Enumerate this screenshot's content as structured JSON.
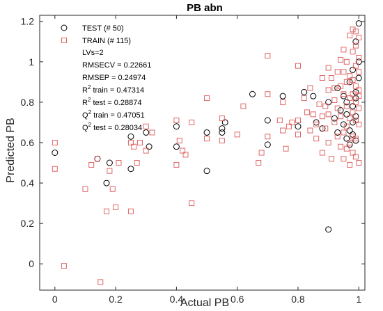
{
  "chart_data": {
    "type": "scatter",
    "title": "PB abn",
    "xlabel": "Actual PB",
    "ylabel": "Predicted PB",
    "xlim": [
      -0.05,
      1.02
    ],
    "ylim": [
      -0.13,
      1.23
    ],
    "xticks": [
      0,
      0.2,
      0.4,
      0.6,
      0.8,
      1
    ],
    "xtick_labels": [
      "0",
      "0.2",
      "0.4",
      "0.6",
      "0.8",
      "1"
    ],
    "yticks": [
      0,
      0.2,
      0.4,
      0.6,
      0.8,
      1,
      1.2
    ],
    "ytick_labels": [
      "0",
      "0.2",
      "0.4",
      "0.6",
      "0.8",
      "1",
      "1.2"
    ],
    "grid": false,
    "legend_position": "top-left",
    "series": [
      {
        "name": "TEST (# 50)",
        "marker": "circle",
        "color": "#000000",
        "points": [
          [
            0.0,
            0.55
          ],
          [
            0.14,
            0.52
          ],
          [
            0.17,
            0.4
          ],
          [
            0.18,
            0.5
          ],
          [
            0.25,
            0.47
          ],
          [
            0.25,
            0.63
          ],
          [
            0.3,
            0.65
          ],
          [
            0.31,
            0.58
          ],
          [
            0.4,
            0.68
          ],
          [
            0.4,
            0.58
          ],
          [
            0.5,
            0.65
          ],
          [
            0.5,
            0.46
          ],
          [
            0.55,
            0.65
          ],
          [
            0.55,
            0.67
          ],
          [
            0.56,
            0.7
          ],
          [
            0.65,
            0.84
          ],
          [
            0.7,
            0.71
          ],
          [
            0.7,
            0.59
          ],
          [
            0.75,
            0.83
          ],
          [
            0.8,
            0.68
          ],
          [
            0.82,
            0.85
          ],
          [
            0.85,
            0.83
          ],
          [
            0.86,
            0.7
          ],
          [
            0.88,
            0.67
          ],
          [
            0.9,
            0.17
          ],
          [
            0.9,
            0.8
          ],
          [
            0.92,
            0.72
          ],
          [
            0.93,
            0.87
          ],
          [
            0.94,
            0.76
          ],
          [
            0.95,
            0.83
          ],
          [
            0.95,
            0.69
          ],
          [
            0.96,
            0.74
          ],
          [
            0.96,
            0.62
          ],
          [
            0.97,
            0.9
          ],
          [
            0.97,
            0.66
          ],
          [
            0.97,
            0.59
          ],
          [
            0.98,
            0.96
          ],
          [
            0.98,
            0.78
          ],
          [
            0.98,
            0.7
          ],
          [
            0.98,
            0.64
          ],
          [
            0.99,
            1.1
          ],
          [
            0.99,
            0.85
          ],
          [
            0.99,
            0.82
          ],
          [
            0.99,
            0.73
          ],
          [
            0.99,
            0.61
          ],
          [
            1.0,
            1.19
          ],
          [
            1.0,
            1.0
          ],
          [
            1.0,
            0.92
          ],
          [
            0.96,
            0.8
          ],
          [
            0.93,
            0.65
          ]
        ]
      },
      {
        "name": "TRAIN (# 115)",
        "marker": "square",
        "color": "#e06666",
        "points": [
          [
            0.0,
            0.6
          ],
          [
            0.0,
            0.47
          ],
          [
            0.03,
            -0.01
          ],
          [
            0.1,
            0.37
          ],
          [
            0.12,
            0.49
          ],
          [
            0.14,
            0.52
          ],
          [
            0.15,
            -0.09
          ],
          [
            0.17,
            0.26
          ],
          [
            0.18,
            0.46
          ],
          [
            0.19,
            0.37
          ],
          [
            0.2,
            0.28
          ],
          [
            0.21,
            0.5
          ],
          [
            0.25,
            0.26
          ],
          [
            0.25,
            0.6
          ],
          [
            0.26,
            0.58
          ],
          [
            0.27,
            0.5
          ],
          [
            0.28,
            0.6
          ],
          [
            0.3,
            0.68
          ],
          [
            0.3,
            0.56
          ],
          [
            0.32,
            0.65
          ],
          [
            0.4,
            0.71
          ],
          [
            0.4,
            0.49
          ],
          [
            0.41,
            0.61
          ],
          [
            0.42,
            0.56
          ],
          [
            0.43,
            0.54
          ],
          [
            0.45,
            0.7
          ],
          [
            0.45,
            0.3
          ],
          [
            0.5,
            0.82
          ],
          [
            0.5,
            0.62
          ],
          [
            0.55,
            0.72
          ],
          [
            0.55,
            0.61
          ],
          [
            0.6,
            0.64
          ],
          [
            0.62,
            0.78
          ],
          [
            0.67,
            0.5
          ],
          [
            0.68,
            0.55
          ],
          [
            0.7,
            1.03
          ],
          [
            0.7,
            0.84
          ],
          [
            0.7,
            0.63
          ],
          [
            0.74,
            0.71
          ],
          [
            0.75,
            0.8
          ],
          [
            0.75,
            0.66
          ],
          [
            0.76,
            0.57
          ],
          [
            0.77,
            0.68
          ],
          [
            0.78,
            0.7
          ],
          [
            0.8,
            0.98
          ],
          [
            0.8,
            0.71
          ],
          [
            0.8,
            0.64
          ],
          [
            0.82,
            0.82
          ],
          [
            0.83,
            0.75
          ],
          [
            0.84,
            0.87
          ],
          [
            0.85,
            0.74
          ],
          [
            0.86,
            0.69
          ],
          [
            0.86,
            0.62
          ],
          [
            0.87,
            0.79
          ],
          [
            0.88,
            0.92
          ],
          [
            0.88,
            0.73
          ],
          [
            0.88,
            0.55
          ],
          [
            0.89,
            0.67
          ],
          [
            0.9,
            0.97
          ],
          [
            0.9,
            0.86
          ],
          [
            0.9,
            0.74
          ],
          [
            0.9,
            0.6
          ],
          [
            0.91,
            0.52
          ],
          [
            0.91,
            0.92
          ],
          [
            0.92,
            0.81
          ],
          [
            0.92,
            0.7
          ],
          [
            0.93,
            0.95
          ],
          [
            0.93,
            0.77
          ],
          [
            0.93,
            0.63
          ],
          [
            0.94,
            1.01
          ],
          [
            0.94,
            0.88
          ],
          [
            0.94,
            0.73
          ],
          [
            0.94,
            0.58
          ],
          [
            0.95,
            1.06
          ],
          [
            0.95,
            0.95
          ],
          [
            0.95,
            0.84
          ],
          [
            0.95,
            0.65
          ],
          [
            0.95,
            0.52
          ],
          [
            0.96,
            1.0
          ],
          [
            0.96,
            0.9
          ],
          [
            0.96,
            0.78
          ],
          [
            0.96,
            0.68
          ],
          [
            0.96,
            0.57
          ],
          [
            0.97,
            1.13
          ],
          [
            0.97,
            0.93
          ],
          [
            0.97,
            0.82
          ],
          [
            0.97,
            0.72
          ],
          [
            0.97,
            0.6
          ],
          [
            0.97,
            0.49
          ],
          [
            0.98,
            1.16
          ],
          [
            0.98,
            1.05
          ],
          [
            0.98,
            0.91
          ],
          [
            0.98,
            0.84
          ],
          [
            0.98,
            0.75
          ],
          [
            0.98,
            0.63
          ],
          [
            0.98,
            0.55
          ],
          [
            0.99,
            1.15
          ],
          [
            0.99,
            1.08
          ],
          [
            0.99,
            0.98
          ],
          [
            0.99,
            0.88
          ],
          [
            0.99,
            0.8
          ],
          [
            0.99,
            0.71
          ],
          [
            0.99,
            0.62
          ],
          [
            0.99,
            0.53
          ],
          [
            1.0,
            1.12
          ],
          [
            1.0,
            1.02
          ],
          [
            1.0,
            0.95
          ],
          [
            1.0,
            0.86
          ],
          [
            1.0,
            0.77
          ],
          [
            1.0,
            0.69
          ],
          [
            1.0,
            0.5
          ],
          [
            1.0,
            0.83
          ],
          [
            0.92,
            0.87
          ],
          [
            0.89,
            0.78
          ],
          [
            0.84,
            0.66
          ]
        ]
      }
    ],
    "annotations": [
      {
        "text": "LVs=2"
      },
      {
        "text": "RMSECV = 0.22661"
      },
      {
        "text": "RMSEP = 0.24974"
      },
      {
        "base": "R",
        "sup": "2",
        "rest": " train = 0.47314"
      },
      {
        "base": "R",
        "sup": "2",
        "rest": " test = 0.28874"
      },
      {
        "base": "Q",
        "sup": "2",
        "rest": " train = 0.47051"
      },
      {
        "base": "Q",
        "sup": "2",
        "rest": " test = 0.28034"
      }
    ]
  }
}
